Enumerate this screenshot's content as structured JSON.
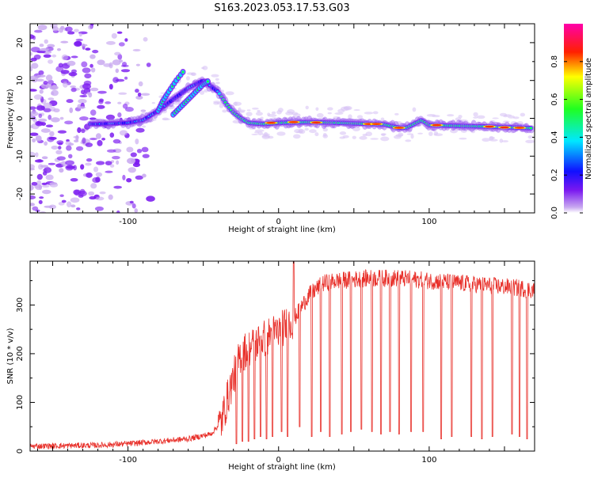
{
  "title": "S163.2023.053.17.53.G03",
  "chart_data": [
    {
      "type": "heatmap",
      "xlabel": "Height of straight line (km)",
      "ylabel": "Frequency (Hz)",
      "xlim": [
        -165,
        170
      ],
      "ylim": [
        -25,
        25
      ],
      "x_ticks": [
        -100,
        0,
        100
      ],
      "x_tick_labels": [
        "-100",
        "0",
        "100"
      ],
      "y_ticks": [
        -20,
        -10,
        0,
        10,
        20
      ],
      "y_tick_labels": [
        "-20",
        "-10",
        "0",
        "10",
        "20"
      ],
      "grid": false,
      "colorbar": {
        "label": "Normalized spectral amplitude",
        "range": [
          0,
          1
        ],
        "ticks": [
          0.0,
          0.2,
          0.4,
          0.6,
          0.8
        ],
        "tick_labels": [
          "0.0",
          "0.2",
          "0.4",
          "0.6",
          "0.8"
        ],
        "colormap": "rainbow (violet-blue-cyan-green-yellow-red-magenta)"
      },
      "main_trace": {
        "x": [
          -120,
          -100,
          -90,
          -80,
          -70,
          -60,
          -50,
          -40,
          -35,
          -30,
          -25,
          -20,
          -10,
          0,
          20,
          40,
          60,
          70,
          80,
          85,
          90,
          95,
          100,
          120,
          140,
          160,
          168
        ],
        "y": [
          -1.5,
          -1.2,
          -0.5,
          2,
          5,
          8,
          10,
          7,
          4,
          1.5,
          0,
          -1.2,
          -1.5,
          -1.2,
          -1,
          -1.2,
          -1.5,
          -1.6,
          -2.5,
          -2.5,
          -1.5,
          -0.5,
          -1.8,
          -2,
          -2.2,
          -2.5,
          -2.6
        ]
      },
      "secondary_traces": [
        {
          "x": [
            -80,
            -77,
            -73,
            -68,
            -62
          ],
          "y": [
            2,
            4.5,
            7,
            10,
            13
          ]
        },
        {
          "x": [
            -70,
            -65,
            -60,
            -55,
            -50,
            -46
          ],
          "y": [
            1,
            3,
            5,
            7,
            9,
            10
          ]
        }
      ]
    },
    {
      "type": "line",
      "xlabel": "Height of straight line (km)",
      "ylabel": "SNR (10 * v/v)",
      "xlim": [
        -165,
        170
      ],
      "ylim": [
        0,
        390
      ],
      "x_ticks": [
        -100,
        0,
        100
      ],
      "x_tick_labels": [
        "-100",
        "0",
        "100"
      ],
      "y_ticks": [
        0,
        100,
        200,
        300
      ],
      "y_tick_labels": [
        "0",
        "100",
        "200",
        "300"
      ],
      "grid": false,
      "series": [
        {
          "color": "#e8302a",
          "envelope": {
            "x": [
              -165,
              -120,
              -100,
              -80,
              -60,
              -45,
              -38,
              -32,
              -25,
              -15,
              -5,
              0,
              10,
              20,
              30,
              40,
              60,
              80,
              100,
              120,
              140,
              160,
              170
            ],
            "y": [
              10,
              12,
              15,
              20,
              25,
              35,
              60,
              130,
              200,
              220,
              240,
              245,
              270,
              320,
              345,
              350,
              355,
              355,
              350,
              345,
              340,
              335,
              330
            ]
          },
          "dropout_x": [
            -28,
            -24,
            -20,
            -16,
            -12,
            -8,
            -4,
            2,
            6,
            10,
            14,
            22,
            28,
            34,
            42,
            48,
            55,
            62,
            68,
            74,
            80,
            88,
            96,
            108,
            115,
            128,
            135,
            142,
            155,
            160,
            165
          ],
          "dropout_y": [
            15,
            20,
            20,
            25,
            30,
            25,
            30,
            40,
            30,
            40,
            50,
            30,
            40,
            30,
            35,
            40,
            45,
            40,
            35,
            40,
            35,
            40,
            40,
            25,
            30,
            30,
            25,
            30,
            35,
            30,
            25
          ],
          "peak": {
            "x": 10,
            "y": 390
          }
        }
      ]
    }
  ]
}
